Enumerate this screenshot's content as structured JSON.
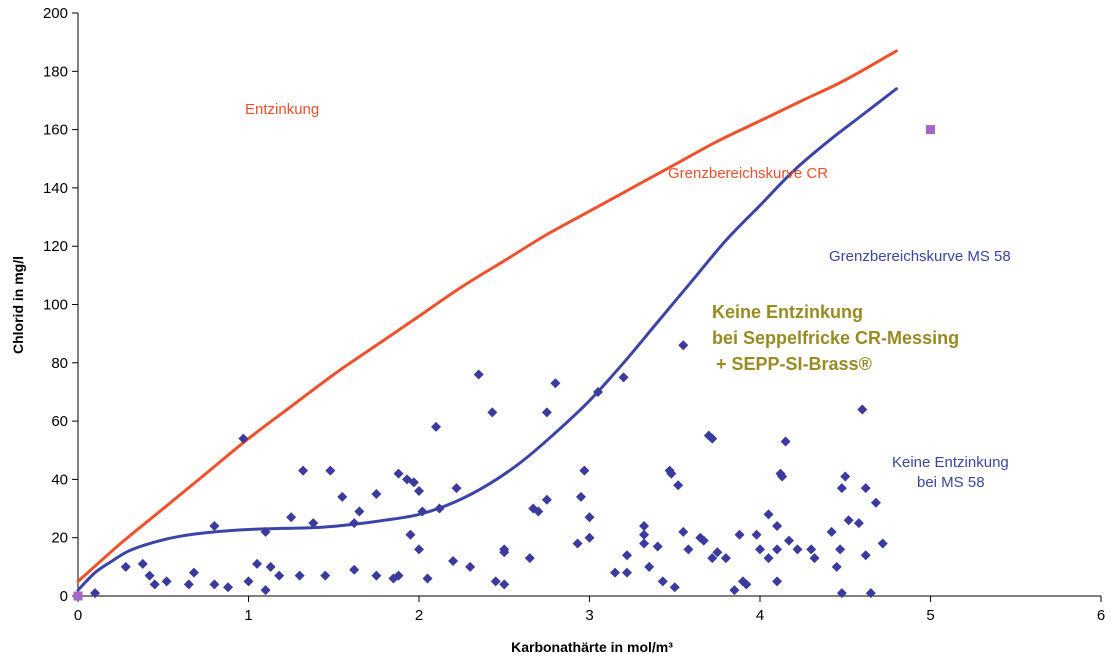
{
  "chart_data": {
    "type": "scatter",
    "title": "",
    "xlabel": "Karbonathärte in mol/m³",
    "ylabel": "Chlorid in mg/l",
    "xlim": [
      0,
      6
    ],
    "ylim": [
      0,
      200
    ],
    "x_ticks": [
      "0",
      "1",
      "2",
      "3",
      "4",
      "5",
      "6"
    ],
    "y_ticks": [
      "0",
      "20",
      "40",
      "60",
      "80",
      "100",
      "120",
      "140",
      "160",
      "180",
      "200"
    ],
    "grid": false,
    "colors": {
      "cr_curve": "#f0502a",
      "ms58_curve": "#3b44a8",
      "points": "#3b3a9e",
      "marker": "#a566c8",
      "highlight_text": "#9a8a22"
    },
    "series": [
      {
        "kind": "line",
        "color": "#f0502a",
        "points": [
          [
            0,
            5
          ],
          [
            0.25,
            18
          ],
          [
            0.5,
            30
          ],
          [
            0.75,
            42
          ],
          [
            1,
            54
          ],
          [
            1.25,
            65
          ],
          [
            1.5,
            76
          ],
          [
            1.75,
            86
          ],
          [
            2,
            96
          ],
          [
            2.25,
            106
          ],
          [
            2.5,
            115
          ],
          [
            2.75,
            124
          ],
          [
            3,
            132
          ],
          [
            3.25,
            140
          ],
          [
            3.5,
            148
          ],
          [
            3.75,
            156
          ],
          [
            4,
            163
          ],
          [
            4.25,
            170
          ],
          [
            4.5,
            177
          ],
          [
            4.8,
            187
          ]
        ]
      },
      {
        "kind": "line",
        "color": "#3b44a8",
        "points": [
          [
            0,
            2
          ],
          [
            0.1,
            8
          ],
          [
            0.2,
            12
          ],
          [
            0.3,
            15.5
          ],
          [
            0.45,
            18.5
          ],
          [
            0.6,
            20.5
          ],
          [
            0.8,
            22
          ],
          [
            1.0,
            22.8
          ],
          [
            1.2,
            23.2
          ],
          [
            1.4,
            23.5
          ],
          [
            1.6,
            24.5
          ],
          [
            1.8,
            26
          ],
          [
            2.0,
            28
          ],
          [
            2.2,
            32
          ],
          [
            2.4,
            38
          ],
          [
            2.6,
            46
          ],
          [
            2.8,
            56
          ],
          [
            3.0,
            67
          ],
          [
            3.2,
            80
          ],
          [
            3.4,
            94
          ],
          [
            3.6,
            108
          ],
          [
            3.8,
            122
          ],
          [
            4.0,
            134
          ],
          [
            4.2,
            146
          ],
          [
            4.4,
            156
          ],
          [
            4.6,
            165
          ],
          [
            4.8,
            174
          ]
        ]
      },
      {
        "kind": "scatter",
        "color": "#3b3a9e",
        "points": [
          [
            0.1,
            1
          ],
          [
            0.28,
            10
          ],
          [
            0.38,
            11
          ],
          [
            0.42,
            7
          ],
          [
            0.45,
            4
          ],
          [
            0.52,
            5
          ],
          [
            0.65,
            4
          ],
          [
            0.68,
            8
          ],
          [
            0.8,
            24
          ],
          [
            0.8,
            4
          ],
          [
            0.88,
            3
          ],
          [
            0.97,
            54
          ],
          [
            1.0,
            5
          ],
          [
            1.05,
            11
          ],
          [
            1.1,
            2
          ],
          [
            1.1,
            22
          ],
          [
            1.13,
            10
          ],
          [
            1.18,
            7
          ],
          [
            1.25,
            27
          ],
          [
            1.3,
            7
          ],
          [
            1.32,
            43
          ],
          [
            1.38,
            25
          ],
          [
            1.45,
            7
          ],
          [
            1.48,
            43
          ],
          [
            1.55,
            34
          ],
          [
            1.62,
            9
          ],
          [
            1.62,
            25
          ],
          [
            1.65,
            29
          ],
          [
            1.75,
            35
          ],
          [
            1.75,
            7
          ],
          [
            1.85,
            6
          ],
          [
            1.88,
            7
          ],
          [
            1.88,
            42
          ],
          [
            1.93,
            40
          ],
          [
            1.95,
            21
          ],
          [
            1.97,
            39
          ],
          [
            2.0,
            16
          ],
          [
            2.0,
            36
          ],
          [
            2.02,
            29
          ],
          [
            2.05,
            6
          ],
          [
            2.1,
            58
          ],
          [
            2.12,
            30
          ],
          [
            2.2,
            12
          ],
          [
            2.22,
            37
          ],
          [
            2.3,
            10
          ],
          [
            2.35,
            76
          ],
          [
            2.43,
            63
          ],
          [
            2.45,
            5
          ],
          [
            2.5,
            4
          ],
          [
            2.5,
            15
          ],
          [
            2.5,
            16
          ],
          [
            2.65,
            13
          ],
          [
            2.67,
            30
          ],
          [
            2.7,
            29
          ],
          [
            2.75,
            63
          ],
          [
            2.75,
            33
          ],
          [
            2.8,
            73
          ],
          [
            2.93,
            18
          ],
          [
            2.95,
            34
          ],
          [
            2.97,
            43
          ],
          [
            3.0,
            27
          ],
          [
            3.0,
            20
          ],
          [
            3.05,
            70
          ],
          [
            3.2,
            75
          ],
          [
            3.22,
            14
          ],
          [
            3.15,
            8
          ],
          [
            3.22,
            8
          ],
          [
            3.32,
            21
          ],
          [
            3.32,
            18
          ],
          [
            3.32,
            24
          ],
          [
            3.35,
            10
          ],
          [
            3.4,
            17
          ],
          [
            3.43,
            5
          ],
          [
            3.47,
            43
          ],
          [
            3.48,
            42
          ],
          [
            3.5,
            3
          ],
          [
            3.52,
            38
          ],
          [
            3.55,
            86
          ],
          [
            3.55,
            22
          ],
          [
            3.58,
            16
          ],
          [
            3.65,
            20
          ],
          [
            3.67,
            19
          ],
          [
            3.7,
            55
          ],
          [
            3.72,
            54
          ],
          [
            3.72,
            13
          ],
          [
            3.75,
            15
          ],
          [
            3.8,
            13
          ],
          [
            3.85,
            2
          ],
          [
            3.88,
            21
          ],
          [
            3.9,
            5
          ],
          [
            3.92,
            4
          ],
          [
            3.98,
            21
          ],
          [
            4.0,
            16
          ],
          [
            4.05,
            28
          ],
          [
            4.05,
            13
          ],
          [
            4.1,
            24
          ],
          [
            4.1,
            5
          ],
          [
            4.1,
            16
          ],
          [
            4.12,
            42
          ],
          [
            4.13,
            41
          ],
          [
            4.15,
            53
          ],
          [
            4.17,
            19
          ],
          [
            4.22,
            16
          ],
          [
            4.3,
            16
          ],
          [
            4.32,
            13
          ],
          [
            4.42,
            22
          ],
          [
            4.45,
            10
          ],
          [
            4.47,
            16
          ],
          [
            4.48,
            1
          ],
          [
            4.48,
            37
          ],
          [
            4.5,
            41
          ],
          [
            4.52,
            26
          ],
          [
            4.58,
            25
          ],
          [
            4.6,
            64
          ],
          [
            4.62,
            37
          ],
          [
            4.62,
            14
          ],
          [
            4.65,
            1
          ],
          [
            4.68,
            32
          ],
          [
            4.72,
            18
          ]
        ]
      },
      {
        "kind": "marker",
        "color": "#a566c8",
        "points": [
          [
            0,
            0
          ],
          [
            5,
            160
          ]
        ]
      }
    ],
    "annotations": {
      "entzinkung": "Entzinkung",
      "grenz_cr": "Grenzbereichskurve CR",
      "grenz_ms58": "Grenzbereichskurve MS 58",
      "keine_cr_1": "Keine Entzinkung",
      "keine_cr_2": "bei Seppelfricke CR-Messing",
      "keine_cr_3": "+ SEPP-SI-Brass®",
      "keine_ms_1": "Keine Entzinkung",
      "keine_ms_2": "bei MS 58"
    }
  }
}
